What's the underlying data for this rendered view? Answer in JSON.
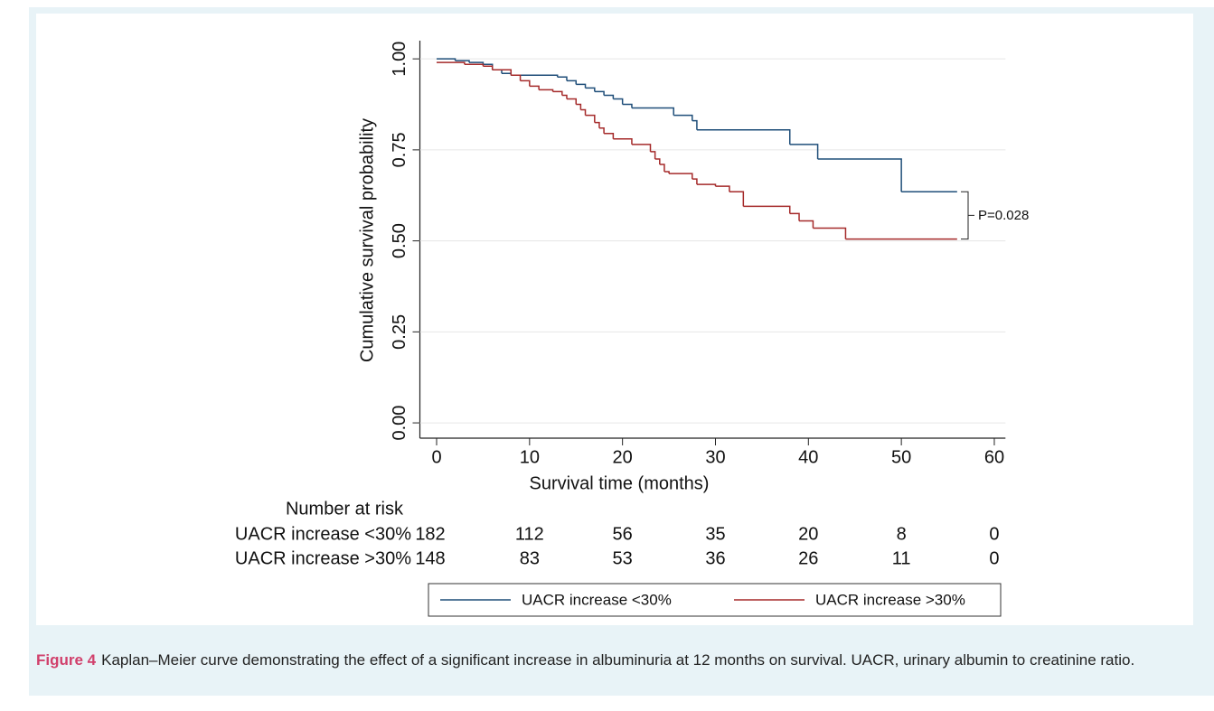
{
  "chart_data": {
    "type": "km",
    "xlabel": "Survival time (months)",
    "ylabel": "Cumulative survival probability",
    "xlim": [
      -1.8,
      61.2
    ],
    "ylim": [
      -0.042,
      1.05
    ],
    "xticks": [
      0,
      10,
      20,
      30,
      40,
      50,
      60
    ],
    "yticks": [
      {
        "value": 0,
        "label": "0.00"
      },
      {
        "value": 0.25,
        "label": "0.25"
      },
      {
        "value": 0.5,
        "label": "0.50"
      },
      {
        "value": 0.75,
        "label": "0.75"
      },
      {
        "value": 1,
        "label": "1.00"
      }
    ],
    "grid": true,
    "series": [
      {
        "name": "UACR increase <30%",
        "color": "#1f4e79",
        "x": [
          0,
          2,
          3.5,
          5,
          6,
          7,
          8,
          13,
          14,
          15,
          16,
          17,
          18,
          19,
          20,
          21,
          25.5,
          27.5,
          28,
          38,
          41,
          50,
          56
        ],
        "values": [
          1.0,
          0.995,
          0.99,
          0.985,
          0.97,
          0.96,
          0.955,
          0.95,
          0.94,
          0.93,
          0.92,
          0.91,
          0.9,
          0.89,
          0.875,
          0.865,
          0.845,
          0.83,
          0.805,
          0.765,
          0.725,
          0.635,
          0.635
        ]
      },
      {
        "name": "UACR increase >30%",
        "color": "#a52a2a",
        "x": [
          0,
          3,
          5,
          6,
          8,
          9,
          10,
          11,
          12.5,
          13.5,
          14,
          15,
          15.5,
          16,
          17,
          17.5,
          18,
          19,
          21,
          23,
          23.5,
          24,
          24.5,
          25,
          27.5,
          28,
          30,
          31.5,
          33,
          38,
          39,
          40.5,
          44,
          56
        ],
        "values": [
          0.99,
          0.985,
          0.98,
          0.97,
          0.955,
          0.94,
          0.925,
          0.915,
          0.91,
          0.9,
          0.89,
          0.875,
          0.86,
          0.845,
          0.825,
          0.81,
          0.795,
          0.78,
          0.765,
          0.745,
          0.725,
          0.71,
          0.69,
          0.685,
          0.67,
          0.655,
          0.65,
          0.635,
          0.595,
          0.575,
          0.555,
          0.535,
          0.505,
          0.505
        ]
      }
    ],
    "annotation": "P=0.028",
    "risk_table": {
      "title": "Number at risk",
      "rows": [
        {
          "name": "UACR increase <30%",
          "values": [
            182,
            112,
            56,
            35,
            20,
            8,
            0
          ]
        },
        {
          "name": "UACR increase >30%",
          "values": [
            148,
            83,
            53,
            36,
            26,
            11,
            0
          ]
        }
      ]
    },
    "legend": "bottom"
  },
  "caption": {
    "label": "Figure 4",
    "text": "Kaplan–Meier curve demonstrating the effect of a significant increase in albuminuria at 12 months on survival. UACR, urinary albumin to creatinine ratio."
  }
}
